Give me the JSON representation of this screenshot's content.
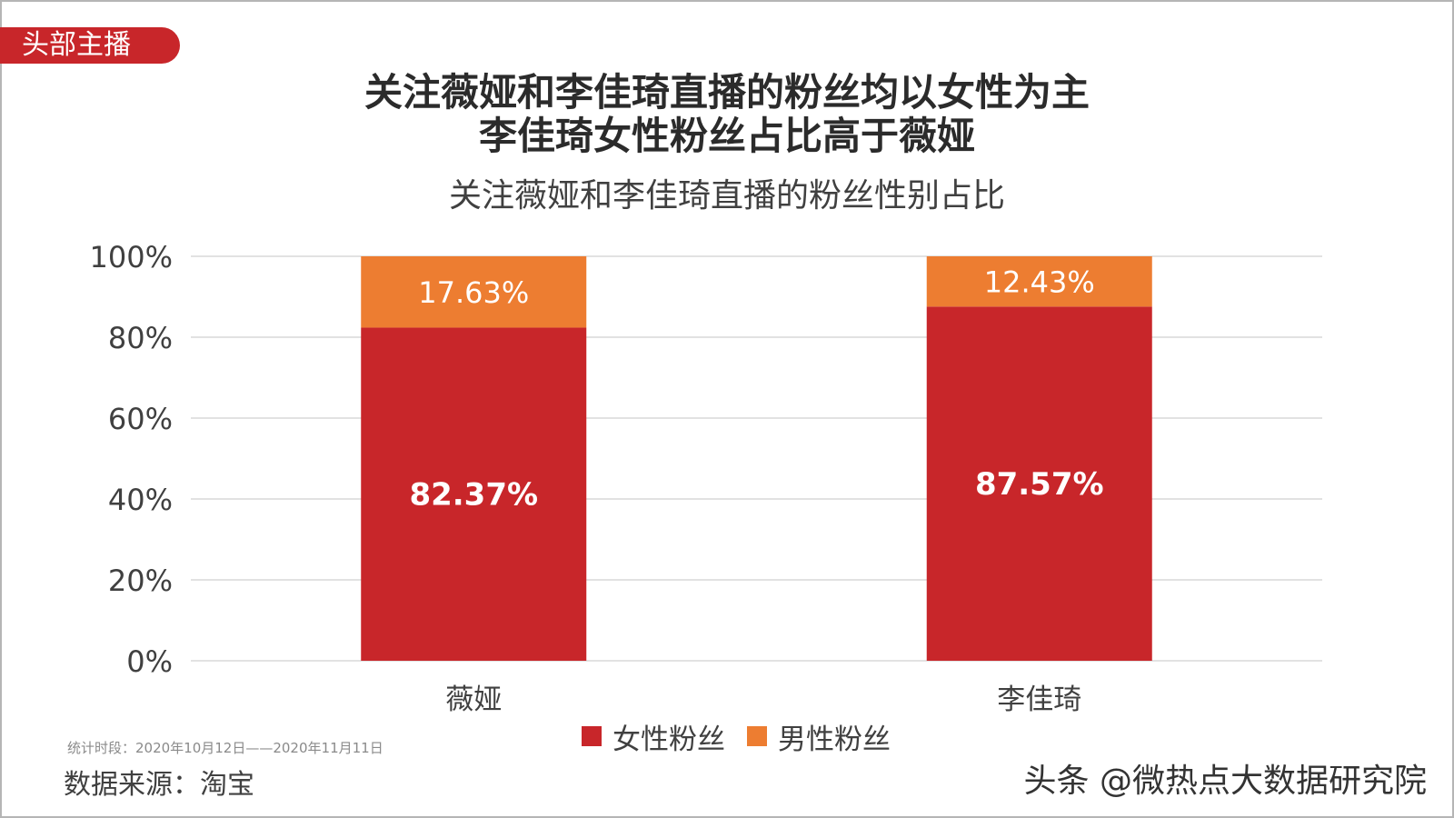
{
  "tag": "头部主播",
  "headline_line1": "关注薇娅和李佳琦直播的粉丝均以女性为主",
  "headline_line2": "李佳琦女性粉丝占比高于薇娅",
  "chart_data": {
    "type": "bar",
    "stacked": true,
    "title": "关注薇娅和李佳琦直播的粉丝性别占比",
    "categories": [
      "薇娅",
      "李佳琦"
    ],
    "series": [
      {
        "name": "女性粉丝",
        "values": [
          82.37,
          87.57
        ],
        "labels": [
          "82.37%",
          "87.57%"
        ],
        "color": "#c8262a"
      },
      {
        "name": "男性粉丝",
        "values": [
          17.63,
          12.43
        ],
        "labels": [
          "17.63%",
          "12.43%"
        ],
        "color": "#ed7d31"
      }
    ],
    "yticks": [
      "0%",
      "20%",
      "40%",
      "60%",
      "80%",
      "100%"
    ],
    "ylim": [
      0,
      100
    ],
    "grid": true,
    "legend_position": "bottom"
  },
  "footer": {
    "period": "统计时段：2020年10月12日——2020年11月11日",
    "source": "数据来源：淘宝"
  },
  "watermark": {
    "text": "头条 @微热点大数据研究院",
    "icon": "weibo-icon"
  }
}
